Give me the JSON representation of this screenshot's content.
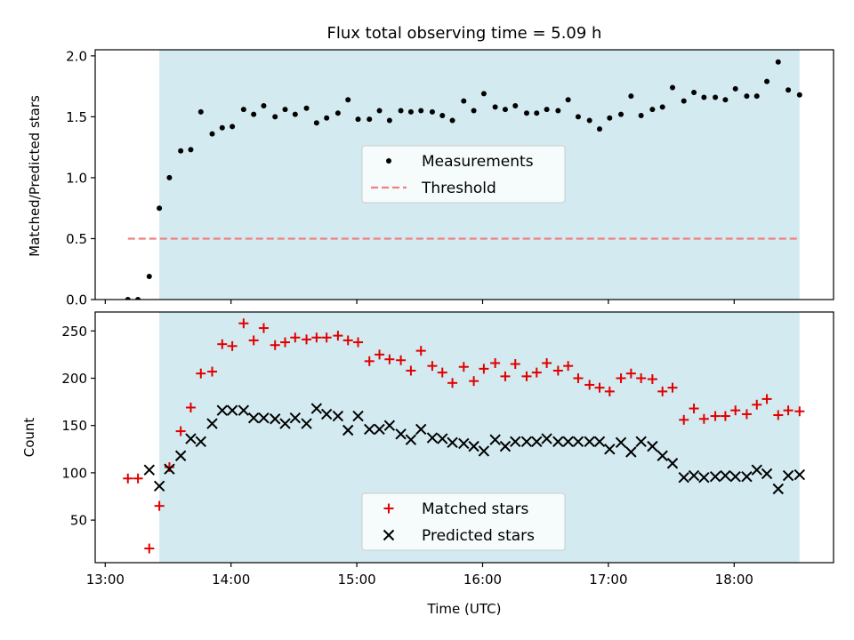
{
  "chart_data": {
    "title": "Flux total observing time = 5.09 h",
    "xlabel": "Time (UTC)",
    "x_ticks": [
      "13:00",
      "14:00",
      "15:00",
      "16:00",
      "17:00",
      "18:00"
    ],
    "x_tick_hours": [
      13,
      14,
      15,
      16,
      17,
      18
    ],
    "xlim_hours": [
      12.92,
      18.79
    ],
    "observing_window_hours": [
      13.43,
      18.52
    ],
    "observing_window_color": "#d3eaf0",
    "panels": [
      {
        "type": "scatter",
        "ylabel": "Matched/Predicted stars",
        "ylim": [
          0.0,
          2.05
        ],
        "y_ticks": [
          0.0,
          0.5,
          1.0,
          1.5,
          2.0
        ],
        "y_tick_labels": [
          "0.0",
          "0.5",
          "1.0",
          "1.5",
          "2.0"
        ],
        "legend_position": "center",
        "series": [
          {
            "name": "Measurements",
            "marker": "dot",
            "color": "#000000",
            "x_hours": [
              13.18,
              13.26,
              13.35,
              13.43,
              13.51,
              13.6,
              13.68,
              13.76,
              13.85,
              13.93,
              14.01,
              14.1,
              14.18,
              14.26,
              14.35,
              14.43,
              14.51,
              14.6,
              14.68,
              14.76,
              14.85,
              14.93,
              15.01,
              15.1,
              15.18,
              15.26,
              15.35,
              15.43,
              15.51,
              15.6,
              15.68,
              15.76,
              15.85,
              15.93,
              16.01,
              16.1,
              16.18,
              16.26,
              16.35,
              16.43,
              16.51,
              16.6,
              16.68,
              16.76,
              16.85,
              16.93,
              17.01,
              17.1,
              17.18,
              17.26,
              17.35,
              17.43,
              17.51,
              17.6,
              17.68,
              17.76,
              17.85,
              17.93,
              18.01,
              18.1,
              18.18,
              18.26,
              18.35,
              18.43,
              18.52
            ],
            "y": [
              0.0,
              0.0,
              0.19,
              0.75,
              1.0,
              1.22,
              1.23,
              1.54,
              1.36,
              1.41,
              1.42,
              1.56,
              1.52,
              1.59,
              1.5,
              1.56,
              1.52,
              1.57,
              1.45,
              1.49,
              1.53,
              1.64,
              1.48,
              1.48,
              1.55,
              1.47,
              1.55,
              1.54,
              1.55,
              1.54,
              1.51,
              1.47,
              1.63,
              1.55,
              1.69,
              1.58,
              1.56,
              1.59,
              1.53,
              1.53,
              1.56,
              1.55,
              1.64,
              1.5,
              1.47,
              1.4,
              1.49,
              1.52,
              1.67,
              1.51,
              1.56,
              1.58,
              1.74,
              1.63,
              1.7,
              1.66,
              1.66,
              1.64,
              1.73,
              1.67,
              1.67,
              1.79,
              1.95,
              1.72,
              1.68
            ]
          },
          {
            "name": "Threshold",
            "marker": "dashed-line",
            "color": "#f08080",
            "x_hours": [
              13.18,
              18.52
            ],
            "y": [
              0.5,
              0.5
            ]
          }
        ]
      },
      {
        "type": "scatter",
        "ylabel": "Count",
        "ylim": [
          5,
          270
        ],
        "y_ticks": [
          50,
          100,
          150,
          200,
          250
        ],
        "y_tick_labels": [
          "50",
          "100",
          "150",
          "200",
          "250"
        ],
        "legend_position": "bottom-center",
        "series": [
          {
            "name": "Matched stars",
            "marker": "plus",
            "color": "#e00000",
            "x_hours": [
              13.18,
              13.26,
              13.35,
              13.43,
              13.51,
              13.6,
              13.68,
              13.76,
              13.85,
              13.93,
              14.01,
              14.1,
              14.18,
              14.26,
              14.35,
              14.43,
              14.51,
              14.6,
              14.68,
              14.76,
              14.85,
              14.93,
              15.01,
              15.1,
              15.18,
              15.26,
              15.35,
              15.43,
              15.51,
              15.6,
              15.68,
              15.76,
              15.85,
              15.93,
              16.01,
              16.1,
              16.18,
              16.26,
              16.35,
              16.43,
              16.51,
              16.6,
              16.68,
              16.76,
              16.85,
              16.93,
              17.01,
              17.1,
              17.18,
              17.26,
              17.35,
              17.43,
              17.51,
              17.6,
              17.68,
              17.76,
              17.85,
              17.93,
              18.01,
              18.1,
              18.18,
              18.26,
              18.35,
              18.43,
              18.52
            ],
            "y": [
              94,
              94,
              20,
              65,
              106,
              144,
              169,
              205,
              207,
              236,
              234,
              258,
              240,
              253,
              235,
              238,
              243,
              241,
              243,
              243,
              245,
              240,
              238,
              218,
              225,
              220,
              219,
              208,
              229,
              213,
              206,
              195,
              212,
              197,
              210,
              216,
              202,
              215,
              202,
              206,
              216,
              208,
              213,
              200,
              193,
              190,
              186,
              200,
              205,
              200,
              199,
              186,
              190,
              156,
              168,
              157,
              160,
              160,
              166,
              162,
              172,
              178,
              161,
              166,
              165
            ]
          },
          {
            "name": "Predicted stars",
            "marker": "x",
            "color": "#000000",
            "x_hours": [
              13.18,
              13.26,
              13.35,
              13.43,
              13.51,
              13.6,
              13.68,
              13.76,
              13.85,
              13.93,
              14.01,
              14.1,
              14.18,
              14.26,
              14.35,
              14.43,
              14.51,
              14.6,
              14.68,
              14.76,
              14.85,
              14.93,
              15.01,
              15.1,
              15.18,
              15.26,
              15.35,
              15.43,
              15.51,
              15.6,
              15.68,
              15.76,
              15.85,
              15.93,
              16.01,
              16.1,
              16.18,
              16.26,
              16.35,
              16.43,
              16.51,
              16.6,
              16.68,
              16.76,
              16.85,
              16.93,
              17.01,
              17.1,
              17.18,
              17.26,
              17.35,
              17.43,
              17.51,
              17.6,
              17.68,
              17.76,
              17.85,
              17.93,
              18.01,
              18.1,
              18.18,
              18.26,
              18.35,
              18.43,
              18.52
            ],
            "y": [
              null,
              null,
              103,
              86,
              104,
              118,
              136,
              133,
              152,
              166,
              166,
              166,
              158,
              158,
              157,
              152,
              158,
              152,
              168,
              162,
              160,
              145,
              160,
              146,
              146,
              150,
              141,
              135,
              146,
              137,
              136,
              132,
              131,
              128,
              123,
              135,
              128,
              133,
              133,
              133,
              136,
              133,
              133,
              133,
              133,
              133,
              125,
              132,
              122,
              133,
              128,
              118,
              110,
              95,
              97,
              95,
              96,
              97,
              96,
              96,
              103,
              99,
              83,
              97,
              98
            ]
          }
        ]
      }
    ]
  }
}
